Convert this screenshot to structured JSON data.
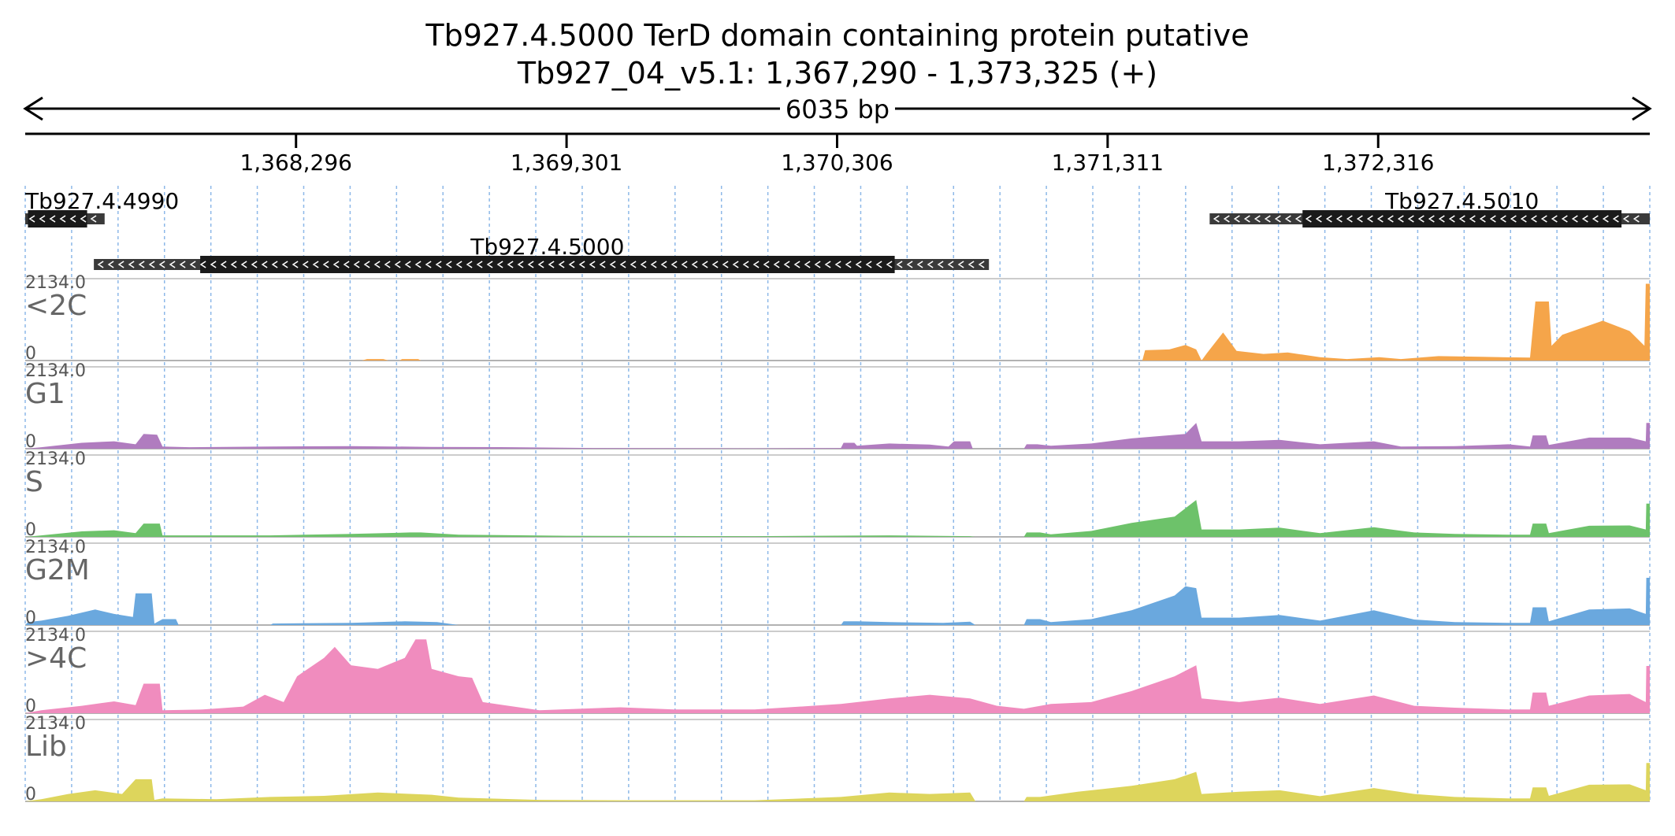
{
  "header": {
    "title": "Tb927.4.5000  TerD domain containing protein  putative",
    "subtitle": "Tb927_04_v5.1: 1,367,290 - 1,373,325 (+)",
    "span_label": "6035 bp"
  },
  "region": {
    "start": 1367290,
    "end": 1373325
  },
  "ruler": {
    "ticks": [
      {
        "pos": 1368296,
        "label": "1,368,296"
      },
      {
        "pos": 1369301,
        "label": "1,369,301"
      },
      {
        "pos": 1370306,
        "label": "1,370,306"
      },
      {
        "pos": 1371311,
        "label": "1,371,311"
      },
      {
        "pos": 1372316,
        "label": "1,372,316"
      }
    ]
  },
  "genes": [
    {
      "name": "Tb927.4.4990",
      "row": 0,
      "utr_start": 1367290,
      "utr_end": 1367585,
      "cds_start": 1367300,
      "cds_end": 1367520
    },
    {
      "name": "Tb927.4.5000",
      "row": 1,
      "utr_start": 1367545,
      "utr_end": 1370870,
      "cds_start": 1367940,
      "cds_end": 1370520
    },
    {
      "name": "Tb927.4.5010",
      "row": 0,
      "utr_start": 1371690,
      "utr_end": 1373325,
      "cds_start": 1372035,
      "cds_end": 1373220
    }
  ],
  "tracks": [
    {
      "name": "<2C",
      "max_label": "2134.0",
      "min_label": "0",
      "color": "#F5A54A"
    },
    {
      "name": "G1",
      "max_label": "2134.0",
      "min_label": "0",
      "color": "#B07CBF"
    },
    {
      "name": "S",
      "max_label": "2134.0",
      "min_label": "0",
      "color": "#6DC26A"
    },
    {
      "name": "G2M",
      "max_label": "2134.0",
      "min_label": "0",
      "color": "#6AA8DE"
    },
    {
      "name": ">4C",
      "max_label": "2134.0",
      "min_label": "0",
      "color": "#F08CBE"
    },
    {
      "name": "Lib",
      "max_label": "2134.0",
      "min_label": "0",
      "color": "#DDD55C"
    }
  ],
  "chart_data": {
    "type": "area",
    "x_unit": "bp",
    "y_range": [
      0,
      2134
    ],
    "series": [
      {
        "name": "<2C",
        "points": [
          [
            1367290,
            0
          ],
          [
            1368540,
            0
          ],
          [
            1368560,
            40
          ],
          [
            1368620,
            40
          ],
          [
            1368640,
            0
          ],
          [
            1368680,
            0
          ],
          [
            1368690,
            40
          ],
          [
            1368750,
            40
          ],
          [
            1368760,
            0
          ],
          [
            1371440,
            0
          ],
          [
            1371450,
            280
          ],
          [
            1371540,
            300
          ],
          [
            1371600,
            420
          ],
          [
            1371640,
            300
          ],
          [
            1371660,
            0
          ],
          [
            1371680,
            200
          ],
          [
            1371740,
            760
          ],
          [
            1371790,
            260
          ],
          [
            1371890,
            180
          ],
          [
            1371980,
            220
          ],
          [
            1372100,
            90
          ],
          [
            1372200,
            40
          ],
          [
            1372320,
            90
          ],
          [
            1372400,
            40
          ],
          [
            1372540,
            120
          ],
          [
            1372700,
            100
          ],
          [
            1372880,
            80
          ],
          [
            1372900,
            1600
          ],
          [
            1372950,
            1600
          ],
          [
            1372960,
            400
          ],
          [
            1373000,
            700
          ],
          [
            1373150,
            1080
          ],
          [
            1373250,
            800
          ],
          [
            1373305,
            400
          ],
          [
            1373310,
            2080
          ],
          [
            1373325,
            2080
          ]
        ]
      },
      {
        "name": "G1",
        "points": [
          [
            1367290,
            0
          ],
          [
            1367350,
            40
          ],
          [
            1367500,
            160
          ],
          [
            1367620,
            200
          ],
          [
            1367700,
            120
          ],
          [
            1367730,
            400
          ],
          [
            1367780,
            380
          ],
          [
            1367800,
            60
          ],
          [
            1367900,
            40
          ],
          [
            1368200,
            60
          ],
          [
            1368500,
            70
          ],
          [
            1368800,
            50
          ],
          [
            1369100,
            40
          ],
          [
            1369400,
            20
          ],
          [
            1370000,
            10
          ],
          [
            1370320,
            20
          ],
          [
            1370330,
            160
          ],
          [
            1370370,
            160
          ],
          [
            1370380,
            80
          ],
          [
            1370500,
            140
          ],
          [
            1370650,
            110
          ],
          [
            1370720,
            60
          ],
          [
            1370740,
            200
          ],
          [
            1370800,
            200
          ],
          [
            1370810,
            0
          ],
          [
            1371000,
            0
          ],
          [
            1371010,
            120
          ],
          [
            1371050,
            120
          ],
          [
            1371100,
            80
          ],
          [
            1371250,
            140
          ],
          [
            1371400,
            280
          ],
          [
            1371600,
            400
          ],
          [
            1371640,
            700
          ],
          [
            1371660,
            200
          ],
          [
            1371800,
            200
          ],
          [
            1371950,
            240
          ],
          [
            1372100,
            120
          ],
          [
            1372300,
            200
          ],
          [
            1372400,
            60
          ],
          [
            1372600,
            70
          ],
          [
            1372800,
            120
          ],
          [
            1372880,
            60
          ],
          [
            1372890,
            360
          ],
          [
            1372940,
            360
          ],
          [
            1372950,
            100
          ],
          [
            1373100,
            300
          ],
          [
            1373250,
            300
          ],
          [
            1373310,
            200
          ],
          [
            1373312,
            700
          ],
          [
            1373325,
            700
          ]
        ]
      },
      {
        "name": "S",
        "points": [
          [
            1367290,
            0
          ],
          [
            1367350,
            40
          ],
          [
            1367500,
            150
          ],
          [
            1367620,
            180
          ],
          [
            1367700,
            100
          ],
          [
            1367730,
            360
          ],
          [
            1367790,
            360
          ],
          [
            1367800,
            40
          ],
          [
            1367950,
            40
          ],
          [
            1368200,
            40
          ],
          [
            1368500,
            80
          ],
          [
            1368720,
            120
          ],
          [
            1368760,
            120
          ],
          [
            1368900,
            60
          ],
          [
            1369300,
            30
          ],
          [
            1370000,
            20
          ],
          [
            1370500,
            40
          ],
          [
            1370800,
            20
          ],
          [
            1370820,
            0
          ],
          [
            1371000,
            0
          ],
          [
            1371010,
            120
          ],
          [
            1371060,
            120
          ],
          [
            1371100,
            70
          ],
          [
            1371250,
            160
          ],
          [
            1371400,
            380
          ],
          [
            1371560,
            550
          ],
          [
            1371640,
            1000
          ],
          [
            1371660,
            200
          ],
          [
            1371800,
            200
          ],
          [
            1371950,
            250
          ],
          [
            1372100,
            100
          ],
          [
            1372300,
            260
          ],
          [
            1372450,
            120
          ],
          [
            1372600,
            80
          ],
          [
            1372800,
            60
          ],
          [
            1372880,
            60
          ],
          [
            1372890,
            360
          ],
          [
            1372940,
            360
          ],
          [
            1372950,
            100
          ],
          [
            1373100,
            300
          ],
          [
            1373250,
            310
          ],
          [
            1373310,
            200
          ],
          [
            1373312,
            900
          ],
          [
            1373325,
            900
          ]
        ]
      },
      {
        "name": "G2M",
        "points": [
          [
            1367290,
            0
          ],
          [
            1367300,
            80
          ],
          [
            1367350,
            120
          ],
          [
            1367450,
            250
          ],
          [
            1367550,
            420
          ],
          [
            1367620,
            300
          ],
          [
            1367690,
            220
          ],
          [
            1367700,
            860
          ],
          [
            1367760,
            860
          ],
          [
            1367770,
            40
          ],
          [
            1367800,
            160
          ],
          [
            1367850,
            160
          ],
          [
            1367860,
            0
          ],
          [
            1368200,
            0
          ],
          [
            1368210,
            40
          ],
          [
            1368500,
            60
          ],
          [
            1368700,
            100
          ],
          [
            1368820,
            80
          ],
          [
            1368900,
            0
          ],
          [
            1370320,
            0
          ],
          [
            1370330,
            100
          ],
          [
            1370380,
            100
          ],
          [
            1370500,
            80
          ],
          [
            1370700,
            60
          ],
          [
            1370800,
            90
          ],
          [
            1370820,
            0
          ],
          [
            1371000,
            0
          ],
          [
            1371010,
            160
          ],
          [
            1371060,
            160
          ],
          [
            1371100,
            80
          ],
          [
            1371250,
            160
          ],
          [
            1371400,
            400
          ],
          [
            1371560,
            800
          ],
          [
            1371600,
            1050
          ],
          [
            1371640,
            1000
          ],
          [
            1371660,
            200
          ],
          [
            1371800,
            200
          ],
          [
            1371950,
            270
          ],
          [
            1372100,
            120
          ],
          [
            1372300,
            400
          ],
          [
            1372450,
            150
          ],
          [
            1372600,
            80
          ],
          [
            1372800,
            60
          ],
          [
            1372880,
            60
          ],
          [
            1372890,
            480
          ],
          [
            1372940,
            480
          ],
          [
            1372950,
            100
          ],
          [
            1373100,
            420
          ],
          [
            1373250,
            450
          ],
          [
            1373310,
            300
          ],
          [
            1373312,
            1280
          ],
          [
            1373325,
            1280
          ]
        ]
      },
      {
        "name": ">4C",
        "points": [
          [
            1367290,
            0
          ],
          [
            1367350,
            80
          ],
          [
            1367500,
            200
          ],
          [
            1367620,
            320
          ],
          [
            1367700,
            220
          ],
          [
            1367730,
            800
          ],
          [
            1367790,
            800
          ],
          [
            1367800,
            80
          ],
          [
            1367950,
            100
          ],
          [
            1368100,
            180
          ],
          [
            1368180,
            500
          ],
          [
            1368250,
            300
          ],
          [
            1368300,
            1000
          ],
          [
            1368400,
            1500
          ],
          [
            1368440,
            1800
          ],
          [
            1368500,
            1300
          ],
          [
            1368600,
            1200
          ],
          [
            1368700,
            1500
          ],
          [
            1368740,
            2000
          ],
          [
            1368780,
            2000
          ],
          [
            1368800,
            1200
          ],
          [
            1368900,
            1000
          ],
          [
            1368950,
            960
          ],
          [
            1368990,
            300
          ],
          [
            1369200,
            80
          ],
          [
            1369500,
            160
          ],
          [
            1369700,
            100
          ],
          [
            1370000,
            100
          ],
          [
            1370320,
            250
          ],
          [
            1370500,
            400
          ],
          [
            1370650,
            500
          ],
          [
            1370800,
            400
          ],
          [
            1370900,
            200
          ],
          [
            1371000,
            120
          ],
          [
            1371100,
            250
          ],
          [
            1371250,
            300
          ],
          [
            1371400,
            600
          ],
          [
            1371560,
            1000
          ],
          [
            1371640,
            1300
          ],
          [
            1371660,
            400
          ],
          [
            1371800,
            300
          ],
          [
            1371950,
            420
          ],
          [
            1372100,
            250
          ],
          [
            1372300,
            480
          ],
          [
            1372450,
            200
          ],
          [
            1372600,
            150
          ],
          [
            1372800,
            100
          ],
          [
            1372880,
            100
          ],
          [
            1372890,
            560
          ],
          [
            1372940,
            560
          ],
          [
            1372950,
            200
          ],
          [
            1373100,
            480
          ],
          [
            1373250,
            520
          ],
          [
            1373310,
            300
          ],
          [
            1373312,
            1280
          ],
          [
            1373325,
            1280
          ]
        ]
      },
      {
        "name": "Lib",
        "points": [
          [
            1367290,
            0
          ],
          [
            1367350,
            60
          ],
          [
            1367450,
            200
          ],
          [
            1367550,
            300
          ],
          [
            1367650,
            200
          ],
          [
            1367700,
            600
          ],
          [
            1367760,
            600
          ],
          [
            1367770,
            40
          ],
          [
            1367800,
            80
          ],
          [
            1368000,
            60
          ],
          [
            1368200,
            120
          ],
          [
            1368400,
            150
          ],
          [
            1368600,
            240
          ],
          [
            1368800,
            180
          ],
          [
            1368900,
            100
          ],
          [
            1369200,
            40
          ],
          [
            1369500,
            30
          ],
          [
            1370000,
            30
          ],
          [
            1370320,
            120
          ],
          [
            1370500,
            240
          ],
          [
            1370650,
            200
          ],
          [
            1370800,
            240
          ],
          [
            1370820,
            0
          ],
          [
            1371000,
            0
          ],
          [
            1371010,
            120
          ],
          [
            1371060,
            120
          ],
          [
            1371200,
            260
          ],
          [
            1371400,
            420
          ],
          [
            1371560,
            600
          ],
          [
            1371640,
            800
          ],
          [
            1371660,
            200
          ],
          [
            1371800,
            260
          ],
          [
            1371950,
            300
          ],
          [
            1372100,
            140
          ],
          [
            1372300,
            360
          ],
          [
            1372450,
            200
          ],
          [
            1372600,
            120
          ],
          [
            1372800,
            80
          ],
          [
            1372880,
            80
          ],
          [
            1372890,
            380
          ],
          [
            1372940,
            380
          ],
          [
            1372950,
            150
          ],
          [
            1373100,
            450
          ],
          [
            1373250,
            460
          ],
          [
            1373310,
            300
          ],
          [
            1373312,
            1040
          ],
          [
            1373325,
            1040
          ]
        ]
      }
    ]
  }
}
